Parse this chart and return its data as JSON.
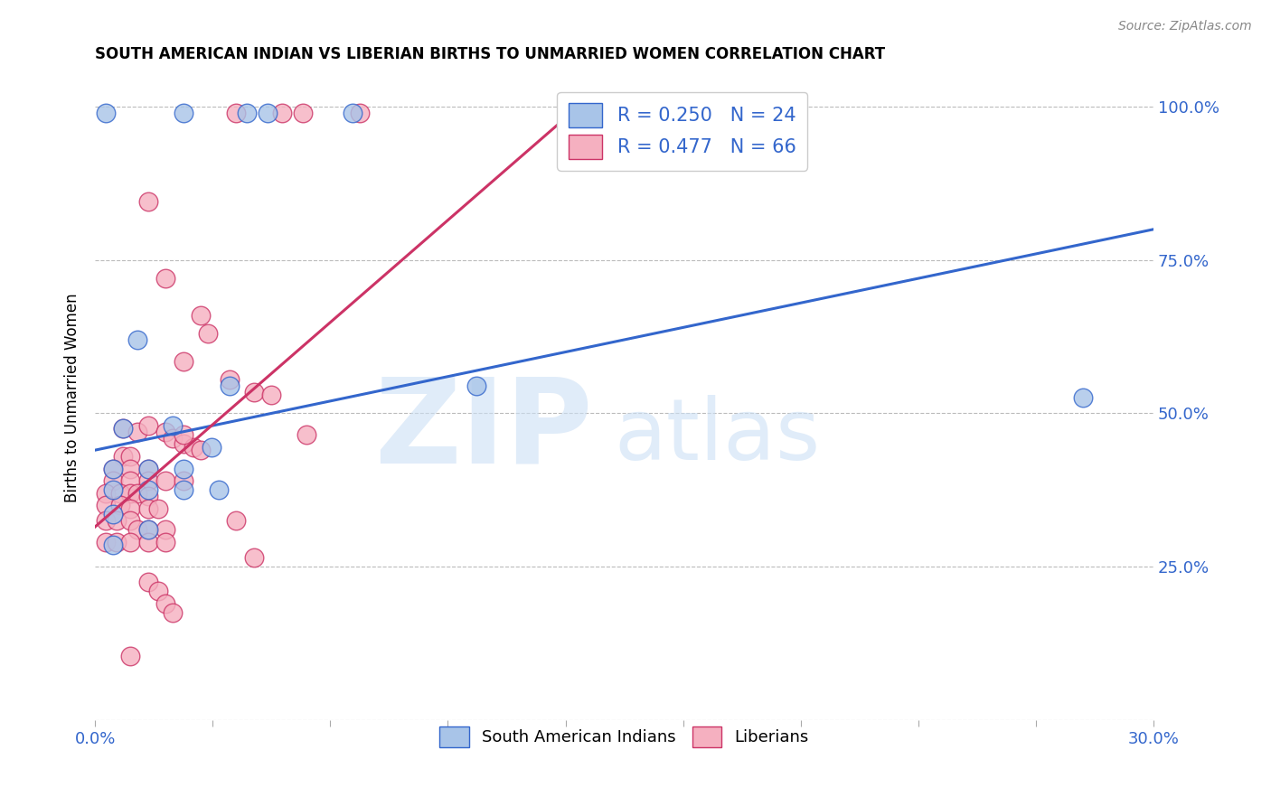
{
  "title": "SOUTH AMERICAN INDIAN VS LIBERIAN BIRTHS TO UNMARRIED WOMEN CORRELATION CHART",
  "source": "Source: ZipAtlas.com",
  "ylabel": "Births to Unmarried Women",
  "xmin": 0.0,
  "xmax": 0.3,
  "ymin": 0.0,
  "ymax": 1.05,
  "yticks": [
    0.0,
    0.25,
    0.5,
    0.75,
    1.0
  ],
  "ytick_labels": [
    "",
    "25.0%",
    "50.0%",
    "75.0%",
    "100.0%"
  ],
  "xtick_labels": [
    "0.0%",
    "",
    "",
    "",
    "",
    "",
    "",
    "",
    "",
    "30.0%"
  ],
  "blue_color": "#a8c4e8",
  "pink_color": "#f5b0c0",
  "blue_line_color": "#3366cc",
  "pink_line_color": "#cc3366",
  "watermark_zip": "ZIP",
  "watermark_atlas": "atlas",
  "blue_points": [
    [
      0.003,
      0.99
    ],
    [
      0.025,
      0.99
    ],
    [
      0.043,
      0.99
    ],
    [
      0.049,
      0.99
    ],
    [
      0.073,
      0.99
    ],
    [
      0.012,
      0.62
    ],
    [
      0.038,
      0.545
    ],
    [
      0.108,
      0.545
    ],
    [
      0.008,
      0.475
    ],
    [
      0.022,
      0.48
    ],
    [
      0.033,
      0.445
    ],
    [
      0.005,
      0.41
    ],
    [
      0.015,
      0.41
    ],
    [
      0.025,
      0.41
    ],
    [
      0.005,
      0.375
    ],
    [
      0.015,
      0.375
    ],
    [
      0.025,
      0.375
    ],
    [
      0.035,
      0.375
    ],
    [
      0.005,
      0.335
    ],
    [
      0.015,
      0.31
    ],
    [
      0.005,
      0.285
    ],
    [
      0.28,
      0.525
    ]
  ],
  "pink_points": [
    [
      0.04,
      0.99
    ],
    [
      0.053,
      0.99
    ],
    [
      0.059,
      0.99
    ],
    [
      0.075,
      0.99
    ],
    [
      0.015,
      0.845
    ],
    [
      0.02,
      0.72
    ],
    [
      0.03,
      0.66
    ],
    [
      0.032,
      0.63
    ],
    [
      0.025,
      0.585
    ],
    [
      0.038,
      0.555
    ],
    [
      0.045,
      0.535
    ],
    [
      0.05,
      0.53
    ],
    [
      0.008,
      0.475
    ],
    [
      0.012,
      0.47
    ],
    [
      0.015,
      0.48
    ],
    [
      0.02,
      0.47
    ],
    [
      0.022,
      0.46
    ],
    [
      0.025,
      0.45
    ],
    [
      0.028,
      0.445
    ],
    [
      0.03,
      0.44
    ],
    [
      0.008,
      0.43
    ],
    [
      0.01,
      0.43
    ],
    [
      0.005,
      0.41
    ],
    [
      0.01,
      0.41
    ],
    [
      0.015,
      0.41
    ],
    [
      0.005,
      0.39
    ],
    [
      0.01,
      0.39
    ],
    [
      0.015,
      0.39
    ],
    [
      0.02,
      0.39
    ],
    [
      0.025,
      0.39
    ],
    [
      0.003,
      0.37
    ],
    [
      0.007,
      0.37
    ],
    [
      0.01,
      0.37
    ],
    [
      0.012,
      0.37
    ],
    [
      0.015,
      0.365
    ],
    [
      0.003,
      0.35
    ],
    [
      0.007,
      0.35
    ],
    [
      0.01,
      0.345
    ],
    [
      0.015,
      0.345
    ],
    [
      0.018,
      0.345
    ],
    [
      0.003,
      0.325
    ],
    [
      0.006,
      0.325
    ],
    [
      0.01,
      0.325
    ],
    [
      0.012,
      0.31
    ],
    [
      0.015,
      0.31
    ],
    [
      0.02,
      0.31
    ],
    [
      0.003,
      0.29
    ],
    [
      0.006,
      0.29
    ],
    [
      0.01,
      0.29
    ],
    [
      0.015,
      0.29
    ],
    [
      0.02,
      0.29
    ],
    [
      0.025,
      0.465
    ],
    [
      0.06,
      0.465
    ],
    [
      0.04,
      0.325
    ],
    [
      0.045,
      0.265
    ],
    [
      0.015,
      0.225
    ],
    [
      0.018,
      0.21
    ],
    [
      0.02,
      0.19
    ],
    [
      0.022,
      0.175
    ],
    [
      0.01,
      0.105
    ]
  ],
  "blue_trend_x": [
    0.0,
    0.3
  ],
  "blue_trend_y": [
    0.44,
    0.8
  ],
  "pink_trend_x": [
    0.0,
    0.135
  ],
  "pink_trend_y": [
    0.315,
    0.99
  ]
}
